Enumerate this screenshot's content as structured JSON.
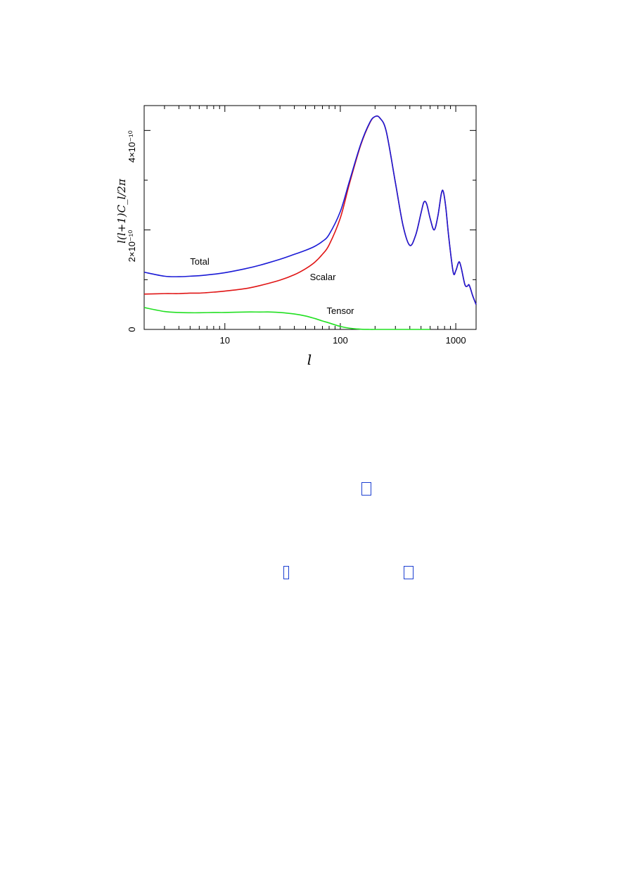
{
  "chart_data": {
    "type": "line",
    "xlabel": "l",
    "ylabel": "l(l+1)C_l/2π",
    "x_scale": "log",
    "xlim": [
      2,
      1500
    ],
    "ylim": [
      0,
      4.5e-10
    ],
    "x_ticks": [
      {
        "value": 10,
        "label": "10"
      },
      {
        "value": 100,
        "label": "100"
      },
      {
        "value": 1000,
        "label": "1000"
      }
    ],
    "y_ticks": [
      {
        "value": 0,
        "label": "0"
      },
      {
        "value": 2e-10,
        "label": "2×10⁻¹⁰"
      },
      {
        "value": 4e-10,
        "label": "4×10⁻¹⁰"
      }
    ],
    "grid": false,
    "series": [
      {
        "name": "Total",
        "color": "#1a1ad6",
        "x": [
          2,
          3,
          4,
          5,
          6,
          8,
          10,
          15,
          20,
          30,
          40,
          50,
          60,
          70,
          80,
          100,
          120,
          150,
          180,
          200,
          220,
          250,
          300,
          350,
          400,
          450,
          500,
          530,
          560,
          600,
          650,
          700,
          750,
          780,
          820,
          870,
          950,
          1000,
          1050,
          1080,
          1120,
          1200,
          1260,
          1300,
          1350,
          1400,
          1500
        ],
        "y": [
          1.15e-10,
          1.07e-10,
          1.06e-10,
          1.07e-10,
          1.08e-10,
          1.11e-10,
          1.14e-10,
          1.22e-10,
          1.29e-10,
          1.41e-10,
          1.51e-10,
          1.59e-10,
          1.67e-10,
          1.77e-10,
          1.91e-10,
          2.37e-10,
          2.98e-10,
          3.72e-10,
          4.16e-10,
          4.28e-10,
          4.25e-10,
          3.98e-10,
          2.95e-10,
          2.08e-10,
          1.69e-10,
          1.9e-10,
          2.34e-10,
          2.56e-10,
          2.52e-10,
          2.23e-10,
          2e-10,
          2.28e-10,
          2.73e-10,
          2.77e-10,
          2.45e-10,
          1.85e-10,
          1.15e-10,
          1.18e-10,
          1.33e-10,
          1.35e-10,
          1.22e-10,
          9e-11,
          8.7e-11,
          9e-11,
          8e-11,
          6.8e-11,
          5e-11
        ]
      },
      {
        "name": "Scalar",
        "color": "#e01515",
        "x": [
          2,
          3,
          4,
          5,
          6,
          8,
          10,
          15,
          20,
          30,
          40,
          50,
          60,
          70,
          80,
          100,
          120,
          150,
          180,
          200,
          220,
          250,
          300,
          350,
          400,
          450,
          500,
          530,
          560,
          600,
          650,
          700,
          750,
          780,
          820,
          870,
          950,
          1000,
          1050,
          1080,
          1120,
          1200,
          1260,
          1300,
          1350,
          1400,
          1500
        ],
        "y": [
          7.1e-11,
          7.2e-11,
          7.2e-11,
          7.3e-11,
          7.3e-11,
          7.5e-11,
          7.7e-11,
          8.2e-11,
          8.8e-11,
          9.9e-11,
          1.1e-10,
          1.22e-10,
          1.35e-10,
          1.51e-10,
          1.7e-10,
          2.24e-10,
          2.93e-10,
          3.7e-10,
          4.15e-10,
          4.28e-10,
          4.25e-10,
          3.98e-10,
          2.95e-10,
          2.08e-10,
          1.69e-10,
          1.9e-10,
          2.34e-10,
          2.56e-10,
          2.52e-10,
          2.23e-10,
          2e-10,
          2.28e-10,
          2.73e-10,
          2.77e-10,
          2.45e-10,
          1.85e-10,
          1.15e-10,
          1.18e-10,
          1.33e-10,
          1.35e-10,
          1.22e-10,
          9e-11,
          8.7e-11,
          9e-11,
          8e-11,
          6.8e-11,
          5e-11
        ]
      },
      {
        "name": "Tensor",
        "color": "#22e022",
        "x": [
          2,
          3,
          4,
          5,
          6,
          8,
          10,
          15,
          20,
          25,
          30,
          40,
          50,
          60,
          70,
          80,
          100,
          120,
          150,
          180,
          200,
          300,
          500,
          600
        ],
        "y": [
          4.4e-11,
          3.6e-11,
          3.4e-11,
          3.35e-11,
          3.35e-11,
          3.4e-11,
          3.4e-11,
          3.5e-11,
          3.5e-11,
          3.5e-11,
          3.4e-11,
          3.1e-11,
          2.7e-11,
          2.2e-11,
          1.7e-11,
          1.3e-11,
          6e-12,
          2.5e-12,
          5e-13,
          0.0,
          0.0,
          0.0,
          0.0,
          0.0
        ]
      }
    ]
  }
}
